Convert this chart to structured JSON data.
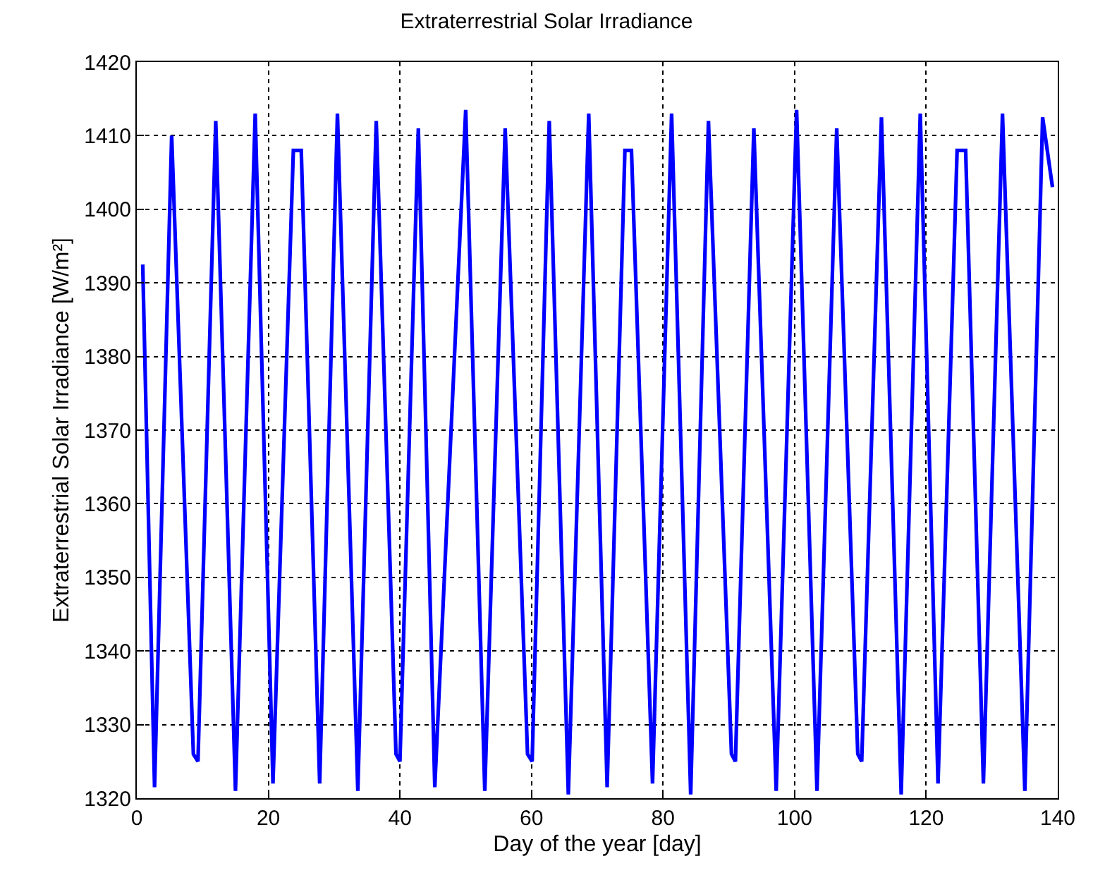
{
  "chart_data": {
    "type": "line",
    "title": "Extraterrestrial Solar Irradiance",
    "xlabel": "Day of the year [day]",
    "ylabel": "Extraterrestrial Solar Irradiance [W/m²]",
    "xlim": [
      0,
      140
    ],
    "xticks": [
      0,
      20,
      40,
      60,
      80,
      100,
      120,
      140
    ],
    "ylim": [
      1320,
      1420
    ],
    "yticks": [
      1320,
      1330,
      1340,
      1350,
      1360,
      1370,
      1380,
      1390,
      1400,
      1410,
      1420
    ],
    "grid": true,
    "line_style": "solid",
    "marker": "none",
    "series": [
      {
        "color": "#0000ff",
        "x": [
          0.9,
          2.7,
          5.3,
          8.6,
          9.3,
          12,
          15,
          18,
          20.7,
          23.8,
          25,
          27.8,
          30.5,
          33.6,
          36.4,
          39.4,
          40,
          42.8,
          45.3,
          50,
          52.9,
          56,
          59.4,
          60.1,
          62.7,
          65.6,
          68.7,
          71.5,
          74.2,
          75.2,
          78.4,
          81.3,
          84.2,
          86.9,
          90.4,
          91,
          93.8,
          97.2,
          100.3,
          103.4,
          106.4,
          109.6,
          110.2,
          113.2,
          116.2,
          119.1,
          121.8,
          124.7,
          126,
          128.7,
          131.6,
          135,
          137.7,
          139.2
        ],
        "values": [
          1392.5,
          1321.5,
          1410,
          1326,
          1325,
          1412,
          1321,
          1413,
          1322,
          1408,
          1408,
          1322,
          1413,
          1321,
          1412,
          1326,
          1325,
          1411,
          1321.5,
          1413.5,
          1321,
          1411,
          1326,
          1325,
          1412,
          1320.5,
          1413,
          1321.5,
          1408,
          1408,
          1322,
          1413,
          1320.5,
          1412,
          1326,
          1325,
          1411,
          1321,
          1413.5,
          1321,
          1411,
          1326,
          1325,
          1412.5,
          1320.5,
          1413,
          1322,
          1408,
          1408,
          1322,
          1413,
          1321,
          1412.5,
          1403
        ]
      }
    ]
  }
}
